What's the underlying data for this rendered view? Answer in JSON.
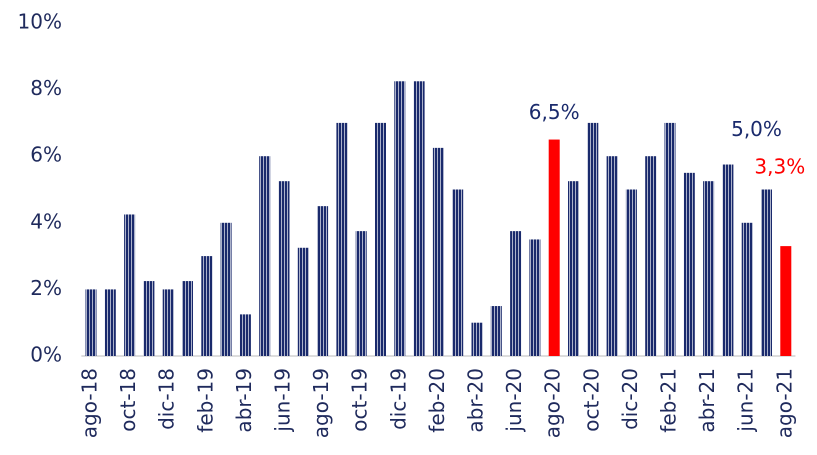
{
  "chart_data": {
    "type": "bar",
    "categories": [
      "ago-18",
      null,
      "oct-18",
      null,
      "dic-18",
      null,
      "feb-19",
      null,
      "abr-19",
      null,
      "jun-19",
      null,
      "ago-19",
      null,
      "oct-19",
      null,
      "dic-19",
      null,
      "feb-20",
      null,
      "abr-20",
      null,
      "jun-20",
      null,
      "ago-20",
      null,
      "oct-20",
      null,
      "dic-20",
      null,
      "feb-21",
      null,
      "abr-21",
      null,
      "jun-21",
      null,
      "ago-21"
    ],
    "values": [
      2.0,
      2.0,
      4.25,
      2.25,
      2.0,
      2.25,
      3.0,
      4.0,
      1.25,
      6.0,
      5.25,
      3.25,
      4.5,
      7.0,
      3.75,
      7.0,
      8.25,
      8.25,
      6.25,
      5.0,
      1.0,
      1.5,
      3.75,
      3.5,
      6.5,
      5.25,
      7.0,
      6.0,
      5.0,
      6.0,
      7.0,
      5.5,
      5.25,
      5.75,
      4.0,
      5.0,
      3.3
    ],
    "value_labels": [
      null,
      null,
      null,
      null,
      null,
      null,
      null,
      null,
      null,
      null,
      null,
      null,
      null,
      null,
      null,
      null,
      null,
      null,
      null,
      null,
      null,
      null,
      null,
      null,
      "6,5%",
      null,
      null,
      null,
      null,
      null,
      null,
      null,
      null,
      null,
      null,
      "5,0%",
      "3,3%"
    ],
    "colors": [
      "#1a2a6c",
      "#1a2a6c",
      "#1a2a6c",
      "#1a2a6c",
      "#1a2a6c",
      "#1a2a6c",
      "#1a2a6c",
      "#1a2a6c",
      "#1a2a6c",
      "#1a2a6c",
      "#1a2a6c",
      "#1a2a6c",
      "#1a2a6c",
      "#1a2a6c",
      "#1a2a6c",
      "#1a2a6c",
      "#1a2a6c",
      "#1a2a6c",
      "#1a2a6c",
      "#1a2a6c",
      "#1a2a6c",
      "#1a2a6c",
      "#1a2a6c",
      "#1a2a6c",
      "#ff0000",
      "#1a2a6c",
      "#1a2a6c",
      "#1a2a6c",
      "#1a2a6c",
      "#1a2a6c",
      "#1a2a6c",
      "#1a2a6c",
      "#1a2a6c",
      "#1a2a6c",
      "#1a2a6c",
      "#1a2a6c",
      "#ff0000"
    ],
    "value_label_colors": [
      null,
      null,
      null,
      null,
      null,
      null,
      null,
      null,
      null,
      null,
      null,
      null,
      null,
      null,
      null,
      null,
      null,
      null,
      null,
      null,
      null,
      null,
      null,
      null,
      "#1a2a6c",
      null,
      null,
      null,
      null,
      null,
      null,
      null,
      null,
      null,
      null,
      "#1a2a6c",
      "#ff0000"
    ],
    "ylim": [
      0,
      10
    ],
    "yticks": [
      {
        "value": 0,
        "label": "0%"
      },
      {
        "value": 2,
        "label": "2%"
      },
      {
        "value": 4,
        "label": "4%"
      },
      {
        "value": 6,
        "label": "6%"
      },
      {
        "value": 8,
        "label": "8%"
      },
      {
        "value": 10,
        "label": "10%"
      }
    ],
    "grid": false
  }
}
